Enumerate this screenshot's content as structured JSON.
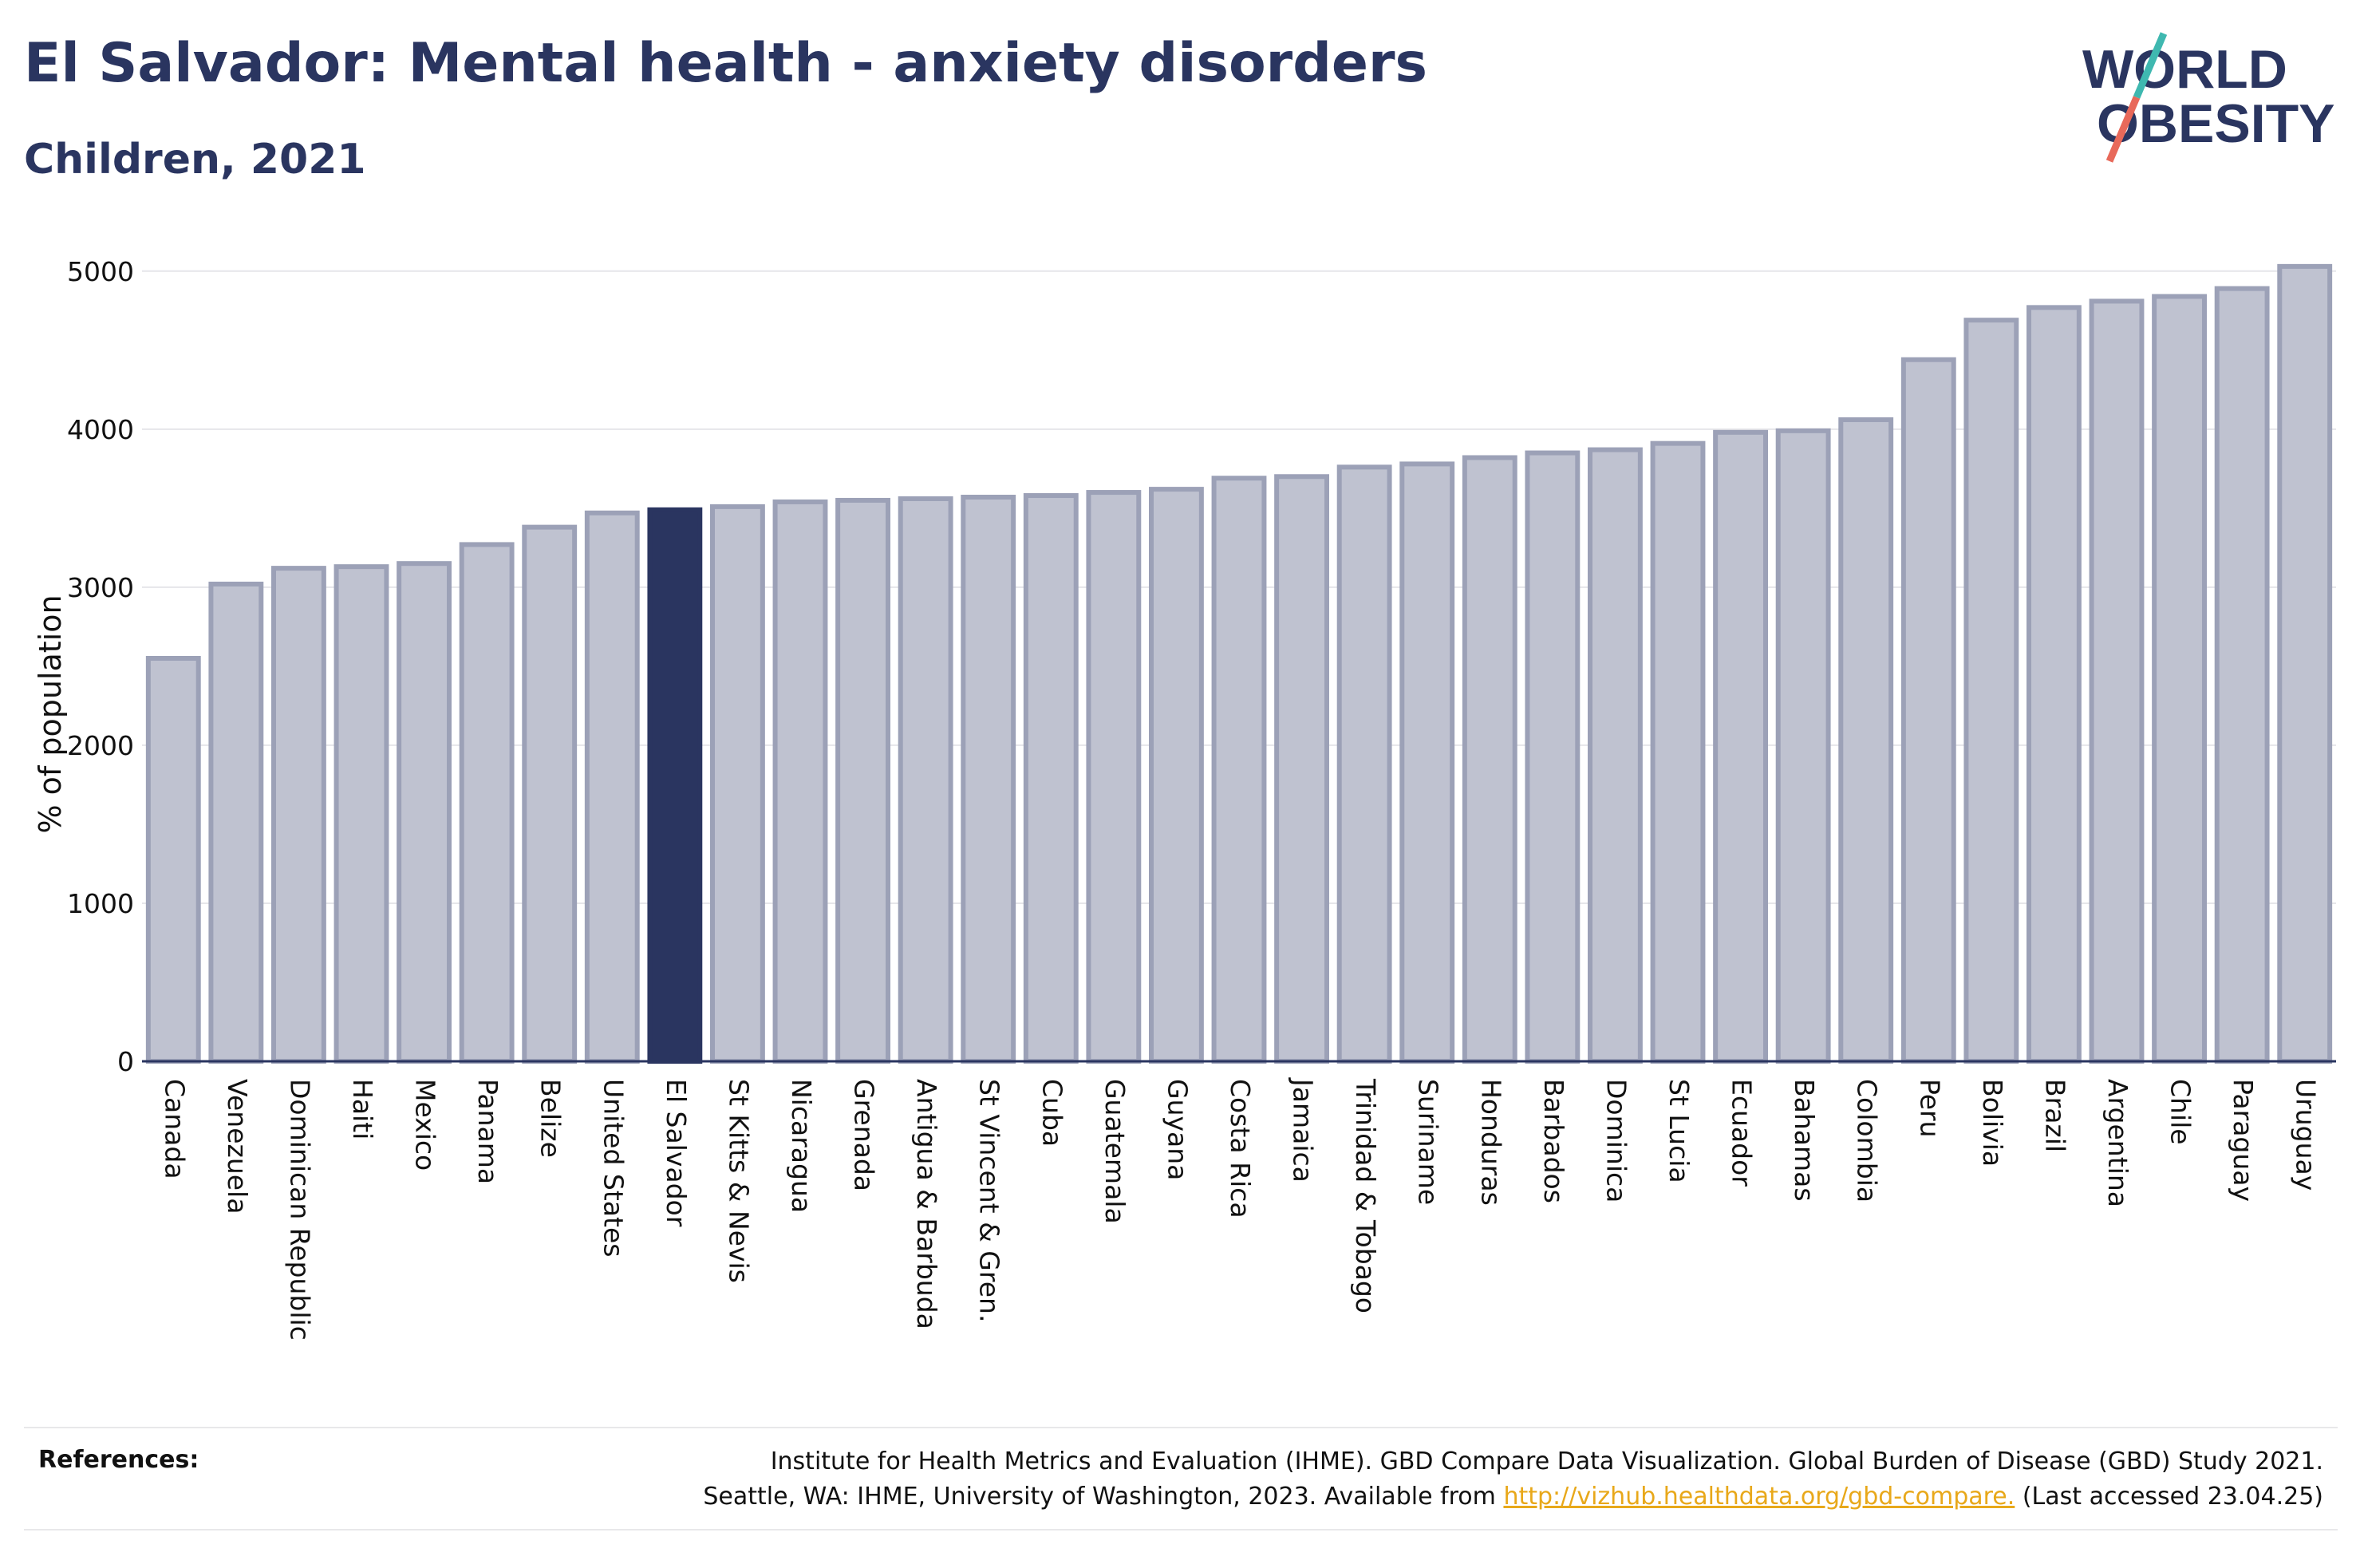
{
  "header": {
    "title": "El Salvador: Mental health - anxiety disorders",
    "subtitle": "Children, 2021"
  },
  "logo": {
    "line1": "WORLD",
    "line2": "OBESITY",
    "colors": {
      "text": "#2a3560",
      "slash_top": "#3fb8b0",
      "slash_bottom": "#e8695a"
    }
  },
  "references": {
    "label": "References:",
    "line1": "Institute for Health Metrics and Evaluation (IHME). GBD Compare Data Visualization. Global Burden of Disease (GBD) Study 2021.",
    "line2_prefix": "Seattle, WA: IHME, University of Washington, 2023. Available from",
    "link": "http://vizhub.healthdata.org/gbd-compare.",
    "line2_suffix": "(Last accessed 23.04.25)"
  },
  "colors": {
    "highlight_bar": "#2a3560",
    "bar_fill": "#bfc2d0",
    "bar_border": "#9ca1b7",
    "grid": "#e6e6ea",
    "axis": "#2a3560",
    "link": "#e8a81a"
  },
  "chart_data": {
    "type": "bar",
    "title": "El Salvador: Mental health - anxiety disorders",
    "subtitle": "Children, 2021",
    "xlabel": "",
    "ylabel": "% of population",
    "ylim": [
      0,
      5100
    ],
    "yticks": [
      0,
      1000,
      2000,
      3000,
      4000,
      5000
    ],
    "grid": true,
    "highlight": "El Salvador",
    "categories": [
      "Canada",
      "Venezuela",
      "Dominican Republic",
      "Haiti",
      "Mexico",
      "Panama",
      "Belize",
      "United States",
      "El Salvador",
      "St Kitts & Nevis",
      "Nicaragua",
      "Grenada",
      "Antigua & Barbuda",
      "St Vincent & Gren.",
      "Cuba",
      "Guatemala",
      "Guyana",
      "Costa Rica",
      "Jamaica",
      "Trinidad & Tobago",
      "Suriname",
      "Honduras",
      "Barbados",
      "Dominica",
      "St Lucia",
      "Ecuador",
      "Bahamas",
      "Colombia",
      "Peru",
      "Bolivia",
      "Brazil",
      "Argentina",
      "Chile",
      "Paraguay",
      "Uruguay"
    ],
    "values": [
      2550,
      3020,
      3120,
      3130,
      3150,
      3270,
      3380,
      3470,
      3490,
      3510,
      3540,
      3550,
      3560,
      3570,
      3580,
      3600,
      3620,
      3690,
      3700,
      3760,
      3780,
      3820,
      3850,
      3870,
      3910,
      3980,
      3990,
      4060,
      4440,
      4690,
      4770,
      4810,
      4840,
      4890,
      5030
    ]
  }
}
